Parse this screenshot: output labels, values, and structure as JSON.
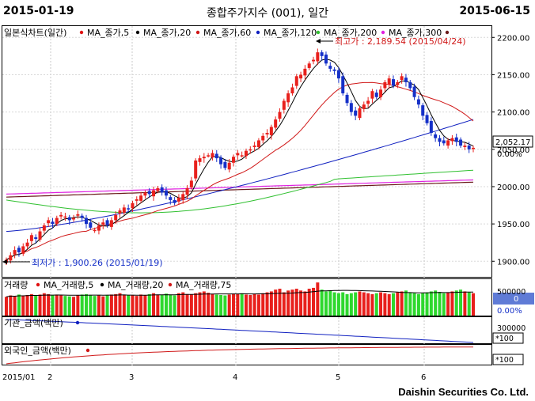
{
  "header": {
    "start_date": "2015-01-19",
    "title": "종합주가지수 (001), 일간",
    "end_date": "2015-06-15"
  },
  "footer": {
    "brand": "Daishin Securities Co. Ltd."
  },
  "colors": {
    "up": "#e8201c",
    "down": "#1530c8",
    "ma5": "#e01010",
    "ma20": "#000000",
    "ma60": "#d01818",
    "ma120": "#1020c0",
    "ma200": "#30c030",
    "ma300": "#6a1a1a",
    "extra": "#e020e0",
    "vol_up": "#2ed82e",
    "panel_bg": "#5f7bd6"
  },
  "chart_data": [
    {
      "type": "candlestick",
      "title": "일본식차트(일간)",
      "legend": [
        {
          "name": "MA_종가,5",
          "color": "#e01010"
        },
        {
          "name": "MA_종가,20",
          "color": "#000000"
        },
        {
          "name": "MA_종가,60",
          "color": "#d01818"
        },
        {
          "name": "MA_종가,120",
          "color": "#1020c0"
        },
        {
          "name": "MA_종가,200",
          "color": "#30c030"
        },
        {
          "name": "MA_종가,300",
          "color": "#6a1a1a"
        }
      ],
      "ylim": [
        1880,
        2215
      ],
      "y_ticks": [
        "2200.00",
        "2150.00",
        "2100.00",
        "2050.00",
        "2000.00",
        "1950.00",
        "1900.00"
      ],
      "last_value_label": "2,052.17",
      "change_label": "0.00%",
      "annotations": {
        "high": "최고가 : 2,189.54 (2015/04/24)",
        "low": "최저가 : 1,900.26 (2015/01/19)"
      },
      "closes": [
        1902,
        1908,
        1915,
        1912,
        1920,
        1925,
        1935,
        1930,
        1940,
        1948,
        1955,
        1950,
        1958,
        1962,
        1960,
        1955,
        1958,
        1963,
        1958,
        1950,
        1945,
        1942,
        1948,
        1952,
        1948,
        1955,
        1962,
        1968,
        1972,
        1970,
        1978,
        1983,
        1988,
        1992,
        1990,
        1995,
        1998,
        1992,
        1988,
        1982,
        1978,
        1985,
        1990,
        1998,
        2008,
        2035,
        2038,
        2040,
        2042,
        2045,
        2038,
        2030,
        2025,
        2032,
        2040,
        2045,
        2042,
        2048,
        2050,
        2055,
        2062,
        2068,
        2072,
        2080,
        2090,
        2100,
        2115,
        2125,
        2133,
        2148,
        2150,
        2158,
        2165,
        2170,
        2180,
        2175,
        2165,
        2158,
        2155,
        2145,
        2125,
        2112,
        2100,
        2095,
        2105,
        2110,
        2115,
        2128,
        2120,
        2130,
        2140,
        2145,
        2135,
        2140,
        2148,
        2140,
        2132,
        2120,
        2110,
        2095,
        2085,
        2072,
        2065,
        2060,
        2058,
        2062,
        2065,
        2060,
        2055,
        2055,
        2050,
        2052
      ],
      "dates_label_x": [
        "2015/01",
        "2",
        "3",
        "4",
        "5",
        "6"
      ]
    },
    {
      "type": "bar",
      "title": "거래량",
      "legend": [
        {
          "name": "MA_거래량,5",
          "color": "#e01010"
        },
        {
          "name": "MA_거래량,20",
          "color": "#000000"
        },
        {
          "name": "MA_거래량,75",
          "color": "#d01818"
        }
      ],
      "y_ticks": [
        "500000"
      ],
      "value_label": "0",
      "change_label": "0.00%",
      "volumes": [
        420,
        450,
        430,
        470,
        440,
        460,
        480,
        450,
        470,
        500,
        480,
        450,
        470,
        460,
        440,
        430,
        420,
        450,
        470,
        480,
        460,
        440,
        450,
        430,
        460,
        470,
        480,
        500,
        470,
        460,
        450,
        440,
        470,
        460,
        480,
        500,
        470,
        460,
        490,
        470,
        450,
        500,
        520,
        480,
        470,
        500,
        520,
        540,
        510,
        480,
        470,
        460,
        450,
        470,
        490,
        480,
        500,
        470,
        460,
        480,
        470,
        500,
        520,
        540,
        580,
        600,
        520,
        560,
        580,
        600,
        560,
        540,
        600,
        620,
        740,
        580,
        540,
        560,
        520,
        500,
        520,
        480,
        500,
        520,
        540,
        520,
        500,
        480,
        500,
        520,
        500,
        480,
        500,
        520,
        540,
        560,
        520,
        500,
        480,
        500,
        520,
        540,
        560,
        530,
        500,
        520,
        540,
        560,
        580,
        540,
        520,
        500
      ]
    },
    {
      "type": "line",
      "title": "기관_금액(백만)",
      "y_ticks": [
        "300000"
      ],
      "value_label": "*100"
    },
    {
      "type": "line",
      "title": "외국인_금액(백만)",
      "value_label": "*100"
    }
  ]
}
